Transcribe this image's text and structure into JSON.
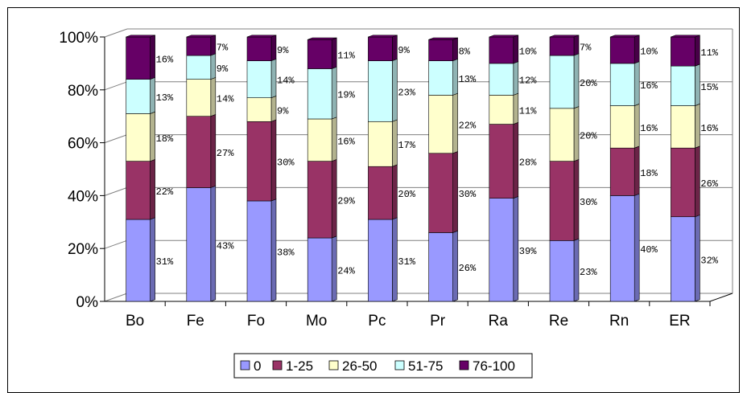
{
  "chart_data": {
    "type": "bar",
    "stacked": true,
    "percent": true,
    "three_d": true,
    "title": "",
    "xlabel": "",
    "ylabel": "",
    "ylim": [
      0,
      100
    ],
    "y_ticks": [
      "0%",
      "20%",
      "40%",
      "60%",
      "80%",
      "100%"
    ],
    "grid": true,
    "legend_position": "bottom",
    "categories": [
      "Bo",
      "Fe",
      "Fo",
      "Mo",
      "Pc",
      "Pr",
      "Ra",
      "Re",
      "Rn",
      "ER"
    ],
    "series": [
      {
        "name": "0",
        "color": "#9999ff",
        "values": [
          31,
          43,
          38,
          24,
          31,
          26,
          39,
          23,
          40,
          32
        ],
        "labels": [
          "31%",
          "43%",
          "38%",
          "24%",
          "31%",
          "26%",
          "39%",
          "23%",
          "40%",
          "32%"
        ]
      },
      {
        "name": "1-25",
        "color": "#993366",
        "values": [
          22,
          27,
          30,
          29,
          20,
          30,
          28,
          30,
          18,
          26
        ],
        "labels": [
          "22%",
          "27%",
          "30%",
          "29%",
          "20%",
          "30%",
          "28%",
          "30%",
          "18%",
          "26%"
        ]
      },
      {
        "name": "26-50",
        "color": "#ffffcc",
        "values": [
          18,
          14,
          9,
          16,
          17,
          22,
          11,
          20,
          16,
          16
        ],
        "labels": [
          "18%",
          "14%",
          "9%",
          "16%",
          "17%",
          "22%",
          "11%",
          "20%",
          "16%",
          "16%"
        ]
      },
      {
        "name": "51-75",
        "color": "#ccffff",
        "values": [
          13,
          9,
          14,
          19,
          23,
          13,
          12,
          20,
          16,
          15
        ],
        "labels": [
          "13%",
          "9%",
          "14%",
          "19%",
          "23%",
          "13%",
          "12%",
          "20%",
          "16%",
          "15%"
        ]
      },
      {
        "name": "76-100",
        "color": "#660066",
        "values": [
          16,
          7,
          9,
          11,
          9,
          8,
          10,
          7,
          10,
          11
        ],
        "labels": [
          "16%",
          "7%",
          "9%",
          "11%",
          "9%",
          "8%",
          "10%",
          "7%",
          "10%",
          "11%"
        ]
      }
    ]
  }
}
